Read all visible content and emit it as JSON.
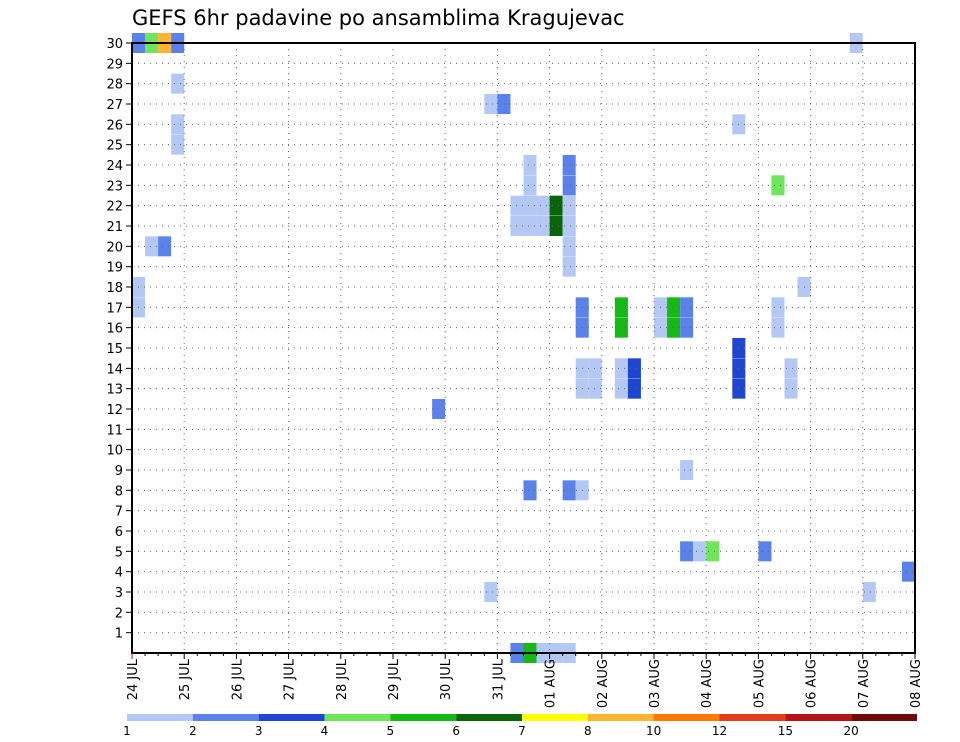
{
  "chart_data": {
    "type": "heatmap",
    "title": "GEFS 6hr padavine po ansamblima Kragujevac",
    "xlabel": "",
    "ylabel": "",
    "x_ticks": [
      "24 JUL",
      "25 JUL",
      "26 JUL",
      "27 JUL",
      "28 JUL",
      "29 JUL",
      "30 JUL",
      "31 JUL",
      "01 AUG",
      "02 AUG",
      "03 AUG",
      "04 AUG",
      "05 AUG",
      "06 AUG",
      "07 AUG",
      "08 AUG"
    ],
    "y_ticks": [
      "1",
      "2",
      "3",
      "4",
      "5",
      "6",
      "7",
      "8",
      "9",
      "10",
      "11",
      "12",
      "13",
      "14",
      "15",
      "16",
      "17",
      "18",
      "19",
      "20",
      "21",
      "22",
      "23",
      "24",
      "25",
      "26",
      "27",
      "28",
      "29",
      "30"
    ],
    "xlim": [
      0,
      60
    ],
    "ylim": [
      0,
      30
    ],
    "grid": true,
    "colorbar": {
      "labels": [
        "1",
        "2",
        "3",
        "4",
        "5",
        "6",
        "7",
        "8",
        "10",
        "12",
        "15",
        "20"
      ],
      "colors": [
        "#b4c8f5",
        "#5a82eb",
        "#1e46d2",
        "#6ee65a",
        "#14b914",
        "#0a640a",
        "#ffff00",
        "#ffb432",
        "#ff7800",
        "#e63c1e",
        "#b41414",
        "#6e0a0a"
      ]
    },
    "cells": [
      {
        "t": 0.5,
        "m": 30,
        "c": 1
      },
      {
        "t": 1.5,
        "m": 30,
        "c": 3
      },
      {
        "t": 2.5,
        "m": 30,
        "c": 7
      },
      {
        "t": 3.5,
        "m": 30,
        "c": 1
      },
      {
        "t": 3.5,
        "m": 28,
        "c": 0
      },
      {
        "t": 3.5,
        "m": 26,
        "c": 0
      },
      {
        "t": 3.5,
        "m": 25,
        "c": 0
      },
      {
        "t": 1.5,
        "m": 20,
        "c": 0
      },
      {
        "t": 2.5,
        "m": 20,
        "c": 1
      },
      {
        "t": 0.5,
        "m": 18,
        "c": 0
      },
      {
        "t": 0.5,
        "m": 17,
        "c": 0
      },
      {
        "t": 23.5,
        "m": 12,
        "c": 1
      },
      {
        "t": 27.5,
        "m": 27,
        "c": 0
      },
      {
        "t": 28.5,
        "m": 27,
        "c": 1
      },
      {
        "t": 27.5,
        "m": 3,
        "c": 0
      },
      {
        "t": 30.5,
        "m": 24,
        "c": 0
      },
      {
        "t": 30.5,
        "m": 23,
        "c": 0
      },
      {
        "t": 29.5,
        "m": 22,
        "c": 0
      },
      {
        "t": 29.5,
        "m": 21,
        "c": 0
      },
      {
        "t": 30.5,
        "m": 22,
        "c": 0
      },
      {
        "t": 30.5,
        "m": 21,
        "c": 0
      },
      {
        "t": 31.5,
        "m": 22,
        "c": 0
      },
      {
        "t": 31.5,
        "m": 21,
        "c": 0
      },
      {
        "t": 32.5,
        "m": 22,
        "c": 5
      },
      {
        "t": 32.5,
        "m": 21,
        "c": 5
      },
      {
        "t": 33.5,
        "m": 22,
        "c": 0
      },
      {
        "t": 33.5,
        "m": 21,
        "c": 0
      },
      {
        "t": 33.5,
        "m": 24,
        "c": 1
      },
      {
        "t": 33.5,
        "m": 23,
        "c": 1
      },
      {
        "t": 33.5,
        "m": 20,
        "c": 0
      },
      {
        "t": 33.5,
        "m": 19,
        "c": 0
      },
      {
        "t": 30.5,
        "m": 8,
        "c": 1
      },
      {
        "t": 33.5,
        "m": 8,
        "c": 1
      },
      {
        "t": 34.5,
        "m": 8,
        "c": 0
      },
      {
        "t": 29.5,
        "m": 0,
        "c": 1
      },
      {
        "t": 30.5,
        "m": 0,
        "c": 4
      },
      {
        "t": 31.5,
        "m": 0,
        "c": 0
      },
      {
        "t": 32.5,
        "m": 0,
        "c": 0
      },
      {
        "t": 33.5,
        "m": 0,
        "c": 0
      },
      {
        "t": 34.5,
        "m": 17,
        "c": 1
      },
      {
        "t": 34.5,
        "m": 16,
        "c": 1
      },
      {
        "t": 34.5,
        "m": 14,
        "c": 0
      },
      {
        "t": 34.5,
        "m": 13,
        "c": 0
      },
      {
        "t": 35.5,
        "m": 14,
        "c": 0
      },
      {
        "t": 35.5,
        "m": 13,
        "c": 0
      },
      {
        "t": 37.5,
        "m": 17,
        "c": 4
      },
      {
        "t": 37.5,
        "m": 16,
        "c": 4
      },
      {
        "t": 37.5,
        "m": 14,
        "c": 0
      },
      {
        "t": 37.5,
        "m": 13,
        "c": 0
      },
      {
        "t": 38.5,
        "m": 14,
        "c": 2
      },
      {
        "t": 38.5,
        "m": 13,
        "c": 2
      },
      {
        "t": 40.5,
        "m": 17,
        "c": 0
      },
      {
        "t": 40.5,
        "m": 16,
        "c": 0
      },
      {
        "t": 41.5,
        "m": 17,
        "c": 4
      },
      {
        "t": 41.5,
        "m": 16,
        "c": 4
      },
      {
        "t": 42.5,
        "m": 17,
        "c": 1
      },
      {
        "t": 42.5,
        "m": 16,
        "c": 1
      },
      {
        "t": 42.5,
        "m": 9,
        "c": 0
      },
      {
        "t": 42.5,
        "m": 5,
        "c": 1
      },
      {
        "t": 43.5,
        "m": 5,
        "c": 0
      },
      {
        "t": 44.5,
        "m": 5,
        "c": 3
      },
      {
        "t": 46.5,
        "m": 26,
        "c": 0
      },
      {
        "t": 46.5,
        "m": 15,
        "c": 2
      },
      {
        "t": 46.5,
        "m": 14,
        "c": 2
      },
      {
        "t": 46.5,
        "m": 13,
        "c": 2
      },
      {
        "t": 48.5,
        "m": 5,
        "c": 1
      },
      {
        "t": 49.5,
        "m": 23,
        "c": 3
      },
      {
        "t": 49.5,
        "m": 17,
        "c": 0
      },
      {
        "t": 49.5,
        "m": 16,
        "c": 0
      },
      {
        "t": 50.5,
        "m": 14,
        "c": 0
      },
      {
        "t": 50.5,
        "m": 13,
        "c": 0
      },
      {
        "t": 51.5,
        "m": 18,
        "c": 0
      },
      {
        "t": 55.5,
        "m": 30,
        "c": 0
      },
      {
        "t": 56.5,
        "m": 3,
        "c": 0
      },
      {
        "t": 59.5,
        "m": 4,
        "c": 1
      }
    ]
  }
}
